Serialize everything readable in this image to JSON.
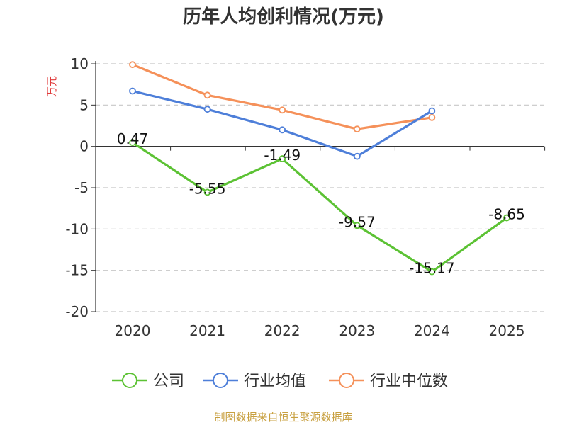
{
  "chart_data": {
    "type": "line",
    "title": "历年人均创利情况(万元)",
    "ylabel": "万元",
    "xlabel": "",
    "categories": [
      "2020",
      "2021",
      "2022",
      "2023",
      "2024",
      "2025"
    ],
    "ylim": [
      -20,
      10
    ],
    "yticks": [
      10,
      5,
      0,
      -5,
      -10,
      -15,
      -20
    ],
    "grid": true,
    "legend_position": "bottom",
    "series": [
      {
        "name": "公司",
        "color": "#5cc234",
        "values": [
          0.47,
          -5.55,
          -1.49,
          -9.57,
          -15.17,
          -8.65
        ],
        "labels": [
          "0.47",
          "-5.55",
          "-1.49",
          "-9.57",
          "-15.17",
          "-8.65"
        ]
      },
      {
        "name": "行业均值",
        "color": "#4e7fd9",
        "values": [
          6.7,
          4.5,
          2.0,
          -1.2,
          4.3,
          null
        ]
      },
      {
        "name": "行业中位数",
        "color": "#f5915a",
        "values": [
          9.9,
          6.2,
          4.4,
          2.1,
          3.5,
          null
        ]
      }
    ],
    "source": "制图数据来自恒生聚源数据库"
  }
}
